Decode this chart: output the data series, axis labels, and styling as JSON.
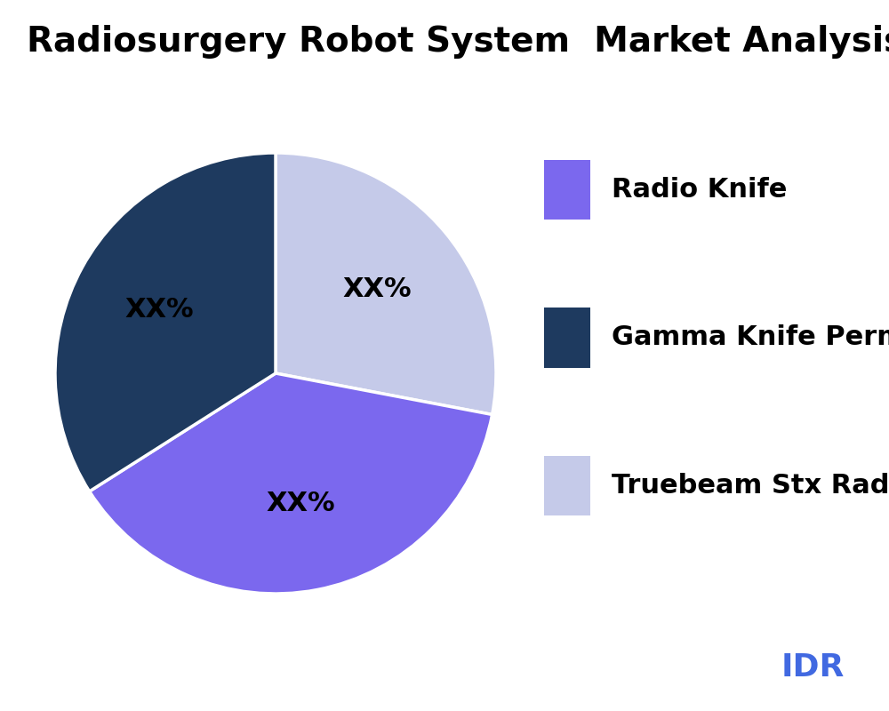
{
  "title": "Radiosurgery Robot System  Market Analysis By Ty",
  "slices": [
    {
      "label": "Truebeam Stx Radia",
      "value": 28,
      "color": "#C5CAE9",
      "text_color": "#000000"
    },
    {
      "label": "Radio Knife",
      "value": 38,
      "color": "#7B68EE",
      "text_color": "#000000"
    },
    {
      "label": "Gamma Knife Perm",
      "value": 34,
      "color": "#1E3A5F",
      "text_color": "#000000"
    }
  ],
  "legend_labels": [
    "Radio Knife",
    "Gamma Knife Perm",
    "Truebeam Stx Radia"
  ],
  "legend_colors": [
    "#7B68EE",
    "#1E3A5F",
    "#C5CAE9"
  ],
  "pct_label": "XX%",
  "title_fontsize": 28,
  "label_fontsize": 22,
  "legend_fontsize": 22,
  "watermark": "IDR",
  "watermark_color": "#4169E1",
  "background_color": "#ffffff",
  "startangle": 90
}
